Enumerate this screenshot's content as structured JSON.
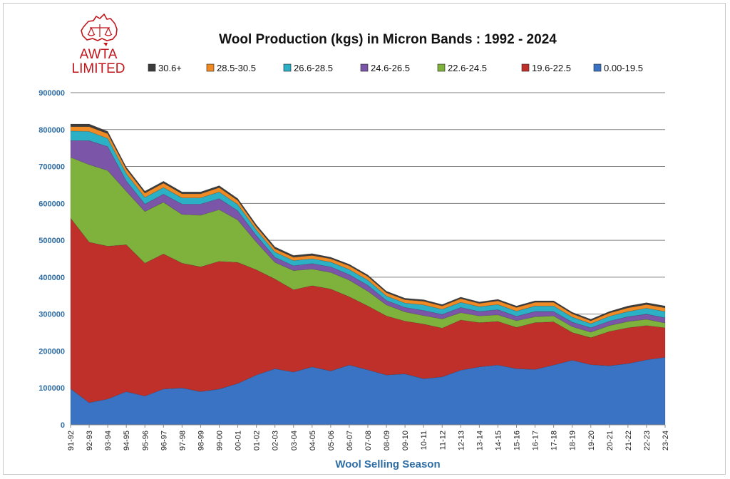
{
  "logo": {
    "line1": "AWTA",
    "line2": "LIMITED",
    "color": "#c0161c"
  },
  "chart_data": {
    "type": "area",
    "stacked": true,
    "title": "Wool Production (kgs) in Micron Bands : 1992 - 2024",
    "xlabel": "Wool Selling Season",
    "ylabel": "",
    "ylim": [
      0,
      900000
    ],
    "yticks": [
      0,
      100000,
      200000,
      300000,
      400000,
      500000,
      600000,
      700000,
      800000,
      900000
    ],
    "grid": true,
    "legend_position": "top",
    "categories": [
      "91-92",
      "92-93",
      "93-94",
      "94-95",
      "95-96",
      "96-97",
      "97-98",
      "98-99",
      "99-00",
      "00-01",
      "01-02",
      "02-03",
      "03-04",
      "04-05",
      "05-06",
      "06-07",
      "07-08",
      "08-09",
      "09-10",
      "10-11",
      "11-12",
      "12-13",
      "13-14",
      "14-15",
      "15-16",
      "16-17",
      "17-18",
      "18-19",
      "19-20",
      "20-21",
      "21-22",
      "22-23",
      "23-24"
    ],
    "series": [
      {
        "name": "0.00-19.5",
        "color": "#3a72c4",
        "values": [
          98000,
          60000,
          70000,
          90000,
          78000,
          97000,
          100000,
          90000,
          97000,
          112000,
          135000,
          152000,
          143000,
          157000,
          146000,
          162000,
          149000,
          135000,
          138000,
          125000,
          130000,
          148000,
          157000,
          162000,
          152000,
          150000,
          162000,
          175000,
          163000,
          160000,
          166000,
          176000,
          183000
        ]
      },
      {
        "name": "19.6-22.5",
        "color": "#c0302b",
        "values": [
          462000,
          435000,
          414000,
          398000,
          360000,
          366000,
          338000,
          338000,
          346000,
          328000,
          285000,
          243000,
          223000,
          220000,
          222000,
          185000,
          173000,
          160000,
          143000,
          148000,
          132000,
          136000,
          120000,
          118000,
          112000,
          127000,
          117000,
          75000,
          73000,
          93000,
          97000,
          93000,
          80000
        ]
      },
      {
        "name": "22.6-24.5",
        "color": "#7fb23c",
        "values": [
          165000,
          210000,
          205000,
          145000,
          140000,
          140000,
          132000,
          140000,
          140000,
          115000,
          75000,
          45000,
          52000,
          45000,
          45000,
          45000,
          40000,
          30000,
          25000,
          23000,
          25000,
          20000,
          18000,
          18000,
          18000,
          16000,
          16000,
          16000,
          15000,
          16000,
          17000,
          17000,
          13000
        ]
      },
      {
        "name": "24.6-26.5",
        "color": "#7b55a8",
        "values": [
          45000,
          65000,
          65000,
          28000,
          20000,
          22000,
          28000,
          30000,
          30000,
          25000,
          18000,
          14000,
          13000,
          15000,
          15000,
          15000,
          16000,
          12000,
          12000,
          14000,
          12000,
          14000,
          12000,
          14000,
          12000,
          14000,
          12000,
          12000,
          12000,
          12000,
          13000,
          14000,
          14000
        ]
      },
      {
        "name": "26.6-28.5",
        "color": "#2bb0c5",
        "values": [
          26000,
          25000,
          22000,
          20000,
          18000,
          18000,
          17000,
          17000,
          18000,
          17000,
          15000,
          14000,
          14000,
          13000,
          13000,
          14000,
          14000,
          12000,
          12000,
          15000,
          14000,
          14000,
          13000,
          14000,
          14000,
          15000,
          15000,
          14000,
          11000,
          13000,
          14000,
          16000,
          17000
        ]
      },
      {
        "name": "28.5-30.5",
        "color": "#f08a24",
        "values": [
          12000,
          13000,
          13000,
          12000,
          12000,
          12000,
          11000,
          11000,
          12000,
          11000,
          9000,
          9000,
          9000,
          9000,
          9000,
          10000,
          10000,
          9000,
          9000,
          10000,
          9000,
          10000,
          9000,
          10000,
          10000,
          10000,
          10000,
          9000,
          8000,
          9000,
          10000,
          10000,
          10000
        ]
      },
      {
        "name": "30.6+",
        "color": "#3c3c3c",
        "values": [
          7000,
          7000,
          6000,
          5000,
          5000,
          5000,
          5000,
          5000,
          5000,
          5000,
          5000,
          5000,
          5000,
          5000,
          4000,
          4000,
          4000,
          4000,
          4000,
          4000,
          4000,
          4000,
          4000,
          4000,
          4000,
          4000,
          4000,
          4000,
          4000,
          4000,
          5000,
          5000,
          5000
        ]
      }
    ]
  }
}
